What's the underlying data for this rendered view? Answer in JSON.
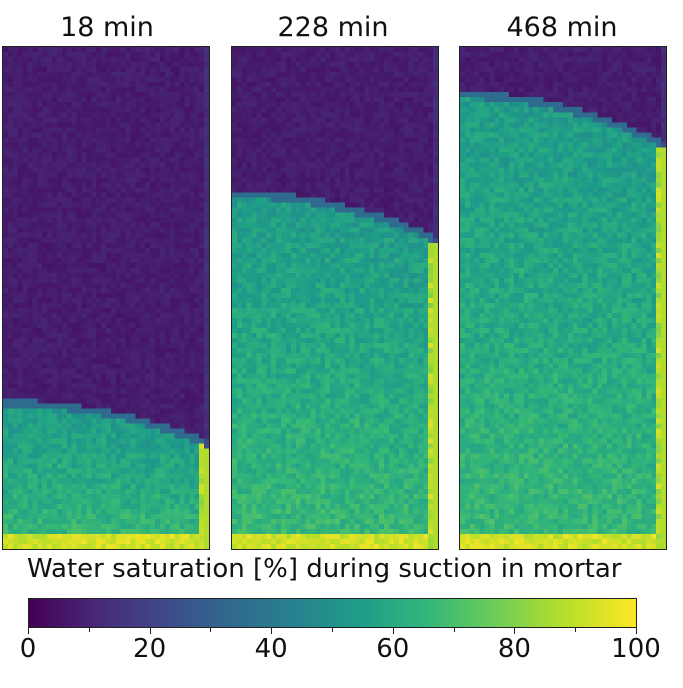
{
  "chart_data": {
    "type": "heatmap",
    "colormap": "viridis",
    "panels": [
      {
        "title": "18 min",
        "front_depth_fraction": 0.72,
        "front_curvature": 0.08
      },
      {
        "title": "228 min",
        "front_depth_fraction": 0.3,
        "front_curvature": 0.09
      },
      {
        "title": "468 min",
        "front_depth_fraction": 0.1,
        "front_curvature": 0.1
      }
    ],
    "colorbar": {
      "label": "Water saturation [%] during suction in mortar",
      "min": 0,
      "max": 100,
      "ticks": [
        0,
        20,
        40,
        60,
        80,
        100
      ],
      "minor_ticks": [
        10,
        30,
        50,
        70,
        90
      ]
    }
  }
}
